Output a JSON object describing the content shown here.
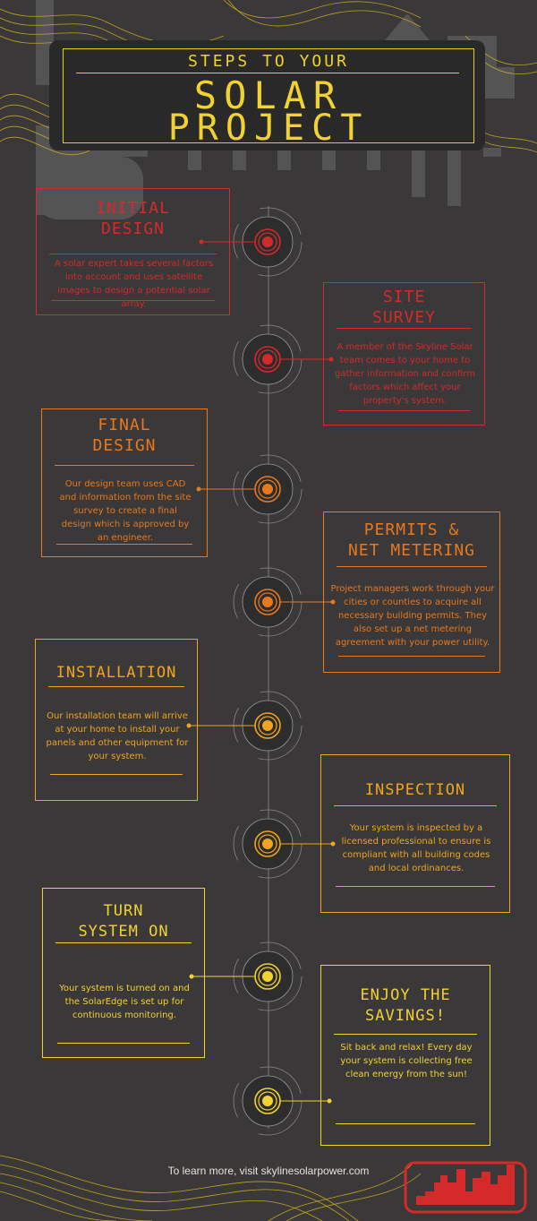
{
  "header": {
    "subtitle": "STEPS TO YOUR",
    "title_line1": "SOLAR",
    "title_line2": "PROJECT"
  },
  "steps": [
    {
      "title": "INITIAL\nDESIGN",
      "description": "A solar expert takes several factors into account and uses satellite images to design a potential solar array.",
      "color": "#d42a2a"
    },
    {
      "title": "SITE\nSURVEY",
      "description": "A member of the Skyline Solar team comes to your home to gather information and confirm factors which affect your property's system.",
      "color": "#d42a2a"
    },
    {
      "title": "FINAL\nDESIGN",
      "description": "Our design team uses CAD and information from the site survey to create a final design which is approved by an engineer.",
      "color": "#e8781e"
    },
    {
      "title": "PERMITS &\nNET METERING",
      "description": "Project managers work through your cities or counties to acquire all necessary building permits.  They also set up a net metering agreement with your power utility.",
      "color": "#e8781e"
    },
    {
      "title": "INSTALLATION",
      "description": "Our installation team will arrive at your home to install your panels and other equipment for your system.",
      "color": "#f0a51e"
    },
    {
      "title": "INSPECTION",
      "description": "Your system is inspected by a licensed professional to ensure is compliant with all building codes and local ordinances.",
      "color": "#f0a51e"
    },
    {
      "title": "TURN\nSYSTEM ON",
      "description": "Your system is turned on and the SolarEdge is set up for continuous monitoring.",
      "color": "#f2d230"
    },
    {
      "title": "ENJOY THE\nSAVINGS!",
      "description": "Sit back and relax! Every day your system is collecting free clean energy from the sun!",
      "color": "#f2d230"
    }
  ],
  "footer": {
    "text": "To learn more, visit skylinesolarpower.com"
  },
  "colors": {
    "background": "#3a3838",
    "red": "#d42a2a",
    "orange": "#e8781e",
    "amber": "#f0a51e",
    "yellow": "#f2d230"
  }
}
